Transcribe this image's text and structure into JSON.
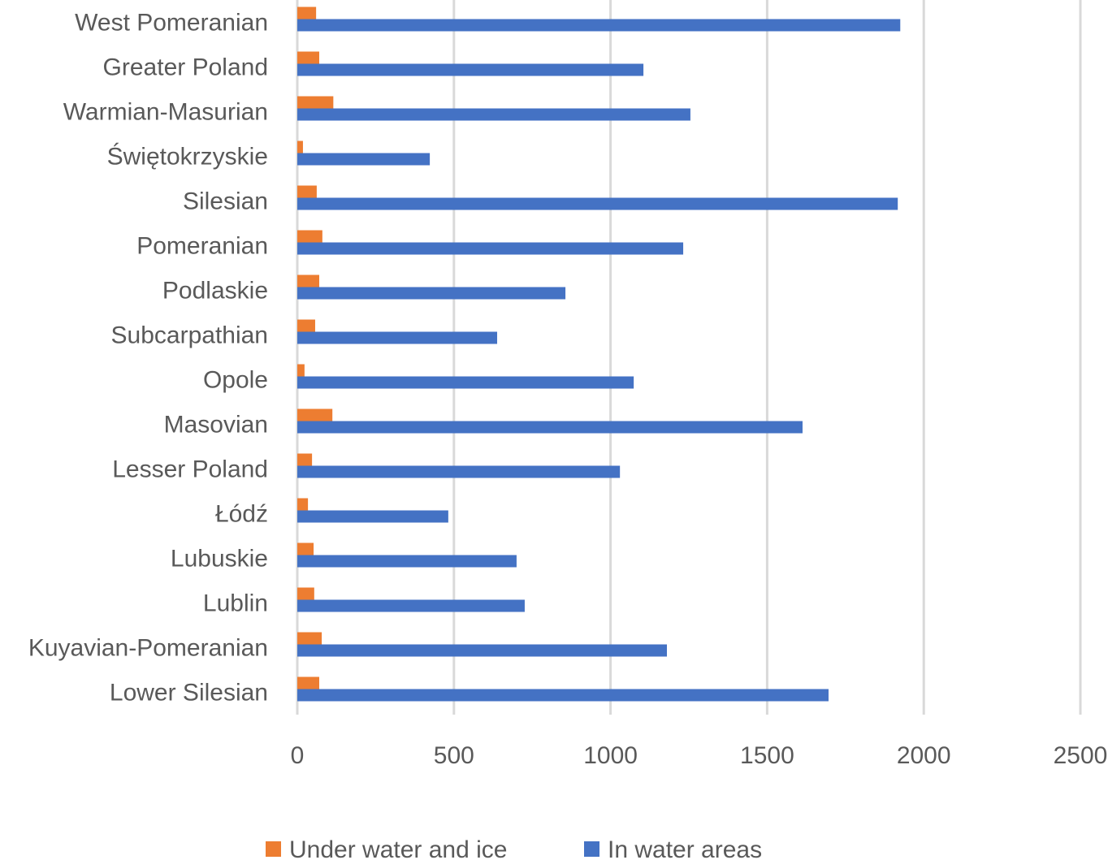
{
  "chart_data": {
    "type": "bar",
    "orientation": "horizontal",
    "title": "",
    "xlabel": "",
    "ylabel": "",
    "xlim": [
      0,
      2500
    ],
    "x_ticks": [
      "0",
      "500",
      "1000",
      "1500",
      "2000",
      "2500"
    ],
    "grid": true,
    "legend_position": "bottom",
    "categories": [
      "West Pomeranian",
      "Greater Poland",
      "Warmian-Masurian",
      "Świętokrzyskie",
      "Silesian",
      "Pomeranian",
      "Podlaskie",
      "Subcarpathian",
      "Opole",
      "Masovian",
      "Lesser Poland",
      "Łódź",
      "Lubuskie",
      "Lublin",
      "Kuyavian-Pomeranian",
      "Lower Silesian"
    ],
    "series": [
      {
        "name": "Under water and ice",
        "color": "#ED7D31",
        "values": [
          60,
          70,
          115,
          18,
          62,
          80,
          70,
          57,
          23,
          112,
          47,
          34,
          52,
          54,
          78,
          70
        ]
      },
      {
        "name": "In water areas",
        "color": "#4472C4",
        "values": [
          1925,
          1105,
          1255,
          423,
          1917,
          1232,
          856,
          638,
          1074,
          1613,
          1030,
          482,
          700,
          726,
          1180,
          1696
        ]
      }
    ]
  }
}
